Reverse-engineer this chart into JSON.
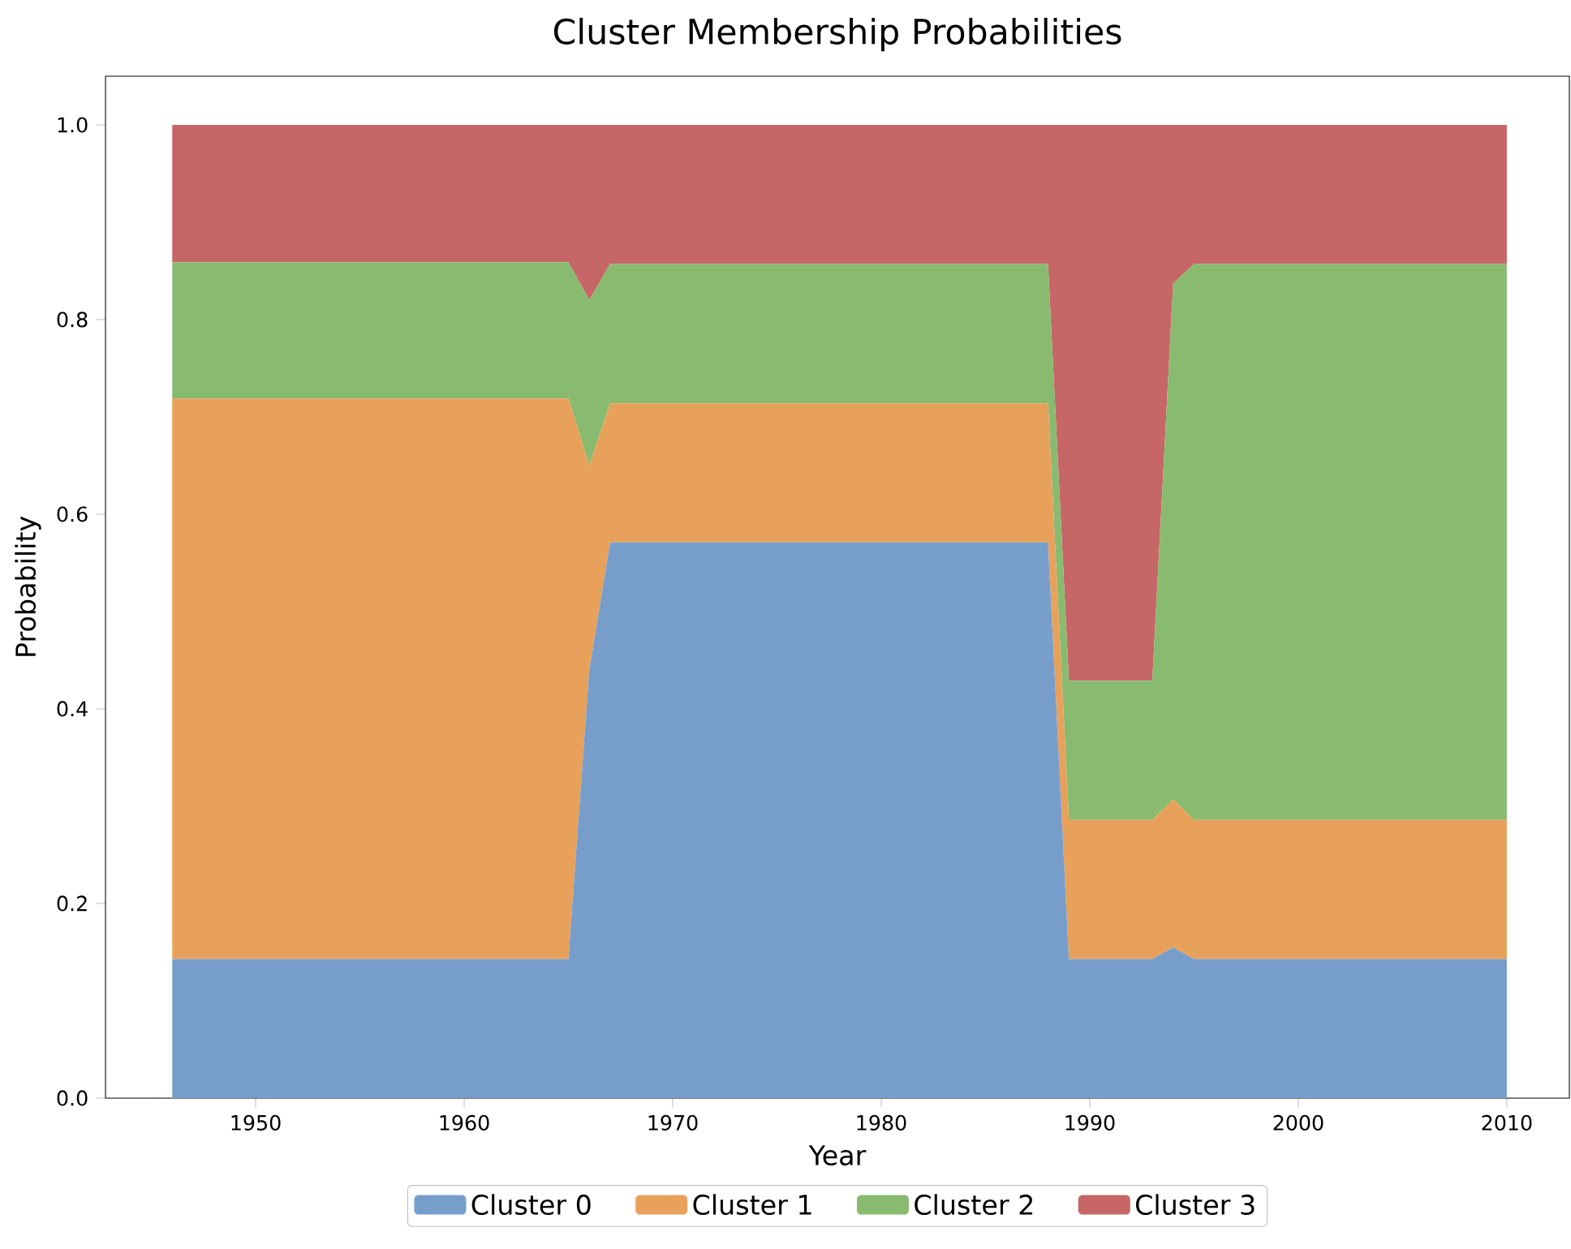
{
  "chart_data": {
    "type": "area",
    "stacked": true,
    "title": "Cluster Membership Probabilities",
    "xlabel": "Year",
    "ylabel": "Probability",
    "x": [
      1946,
      1947,
      1948,
      1949,
      1950,
      1951,
      1952,
      1953,
      1954,
      1955,
      1956,
      1957,
      1958,
      1959,
      1960,
      1961,
      1962,
      1963,
      1964,
      1965,
      1966,
      1967,
      1968,
      1969,
      1970,
      1971,
      1972,
      1973,
      1974,
      1975,
      1976,
      1977,
      1978,
      1979,
      1980,
      1981,
      1982,
      1983,
      1984,
      1985,
      1986,
      1987,
      1988,
      1989,
      1990,
      1991,
      1992,
      1993,
      1994,
      1995,
      1996,
      1997,
      1998,
      1999,
      2000,
      2001,
      2002,
      2003,
      2004,
      2005,
      2006,
      2007,
      2008,
      2009,
      2010
    ],
    "series": [
      {
        "name": "Cluster 0",
        "color": "#779ecb",
        "values": [
          0.143,
          0.143,
          0.143,
          0.143,
          0.143,
          0.143,
          0.143,
          0.143,
          0.143,
          0.143,
          0.143,
          0.143,
          0.143,
          0.143,
          0.143,
          0.143,
          0.143,
          0.143,
          0.143,
          0.143,
          0.44,
          0.571,
          0.571,
          0.571,
          0.571,
          0.571,
          0.571,
          0.571,
          0.571,
          0.571,
          0.571,
          0.571,
          0.571,
          0.571,
          0.571,
          0.571,
          0.571,
          0.571,
          0.571,
          0.571,
          0.571,
          0.571,
          0.571,
          0.143,
          0.143,
          0.143,
          0.143,
          0.143,
          0.155,
          0.143,
          0.143,
          0.143,
          0.143,
          0.143,
          0.143,
          0.143,
          0.143,
          0.143,
          0.143,
          0.143,
          0.143,
          0.143,
          0.143,
          0.143,
          0.143
        ]
      },
      {
        "name": "Cluster 1",
        "color": "#e8a15a",
        "values": [
          0.576,
          0.576,
          0.576,
          0.576,
          0.576,
          0.576,
          0.576,
          0.576,
          0.576,
          0.576,
          0.576,
          0.576,
          0.576,
          0.576,
          0.576,
          0.576,
          0.576,
          0.576,
          0.576,
          0.576,
          0.21,
          0.143,
          0.143,
          0.143,
          0.143,
          0.143,
          0.143,
          0.143,
          0.143,
          0.143,
          0.143,
          0.143,
          0.143,
          0.143,
          0.143,
          0.143,
          0.143,
          0.143,
          0.143,
          0.143,
          0.143,
          0.143,
          0.143,
          0.143,
          0.143,
          0.143,
          0.143,
          0.143,
          0.152,
          0.143,
          0.143,
          0.143,
          0.143,
          0.143,
          0.143,
          0.143,
          0.143,
          0.143,
          0.143,
          0.143,
          0.143,
          0.143,
          0.143,
          0.143,
          0.143
        ]
      },
      {
        "name": "Cluster 2",
        "color": "#88bb6f",
        "values": [
          0.14,
          0.14,
          0.14,
          0.14,
          0.14,
          0.14,
          0.14,
          0.14,
          0.14,
          0.14,
          0.14,
          0.14,
          0.14,
          0.14,
          0.14,
          0.14,
          0.14,
          0.14,
          0.14,
          0.14,
          0.17,
          0.143,
          0.143,
          0.143,
          0.143,
          0.143,
          0.143,
          0.143,
          0.143,
          0.143,
          0.143,
          0.143,
          0.143,
          0.143,
          0.143,
          0.143,
          0.143,
          0.143,
          0.143,
          0.143,
          0.143,
          0.143,
          0.143,
          0.143,
          0.143,
          0.143,
          0.143,
          0.143,
          0.53,
          0.571,
          0.571,
          0.571,
          0.571,
          0.571,
          0.571,
          0.571,
          0.571,
          0.571,
          0.571,
          0.571,
          0.571,
          0.571,
          0.571,
          0.571,
          0.571
        ]
      },
      {
        "name": "Cluster 3",
        "color": "#c66666",
        "values": [
          0.141,
          0.141,
          0.141,
          0.141,
          0.141,
          0.141,
          0.141,
          0.141,
          0.141,
          0.141,
          0.141,
          0.141,
          0.141,
          0.141,
          0.141,
          0.141,
          0.141,
          0.141,
          0.141,
          0.141,
          0.18,
          0.143,
          0.143,
          0.143,
          0.143,
          0.143,
          0.143,
          0.143,
          0.143,
          0.143,
          0.143,
          0.143,
          0.143,
          0.143,
          0.143,
          0.143,
          0.143,
          0.143,
          0.143,
          0.143,
          0.143,
          0.143,
          0.143,
          0.571,
          0.571,
          0.571,
          0.571,
          0.571,
          0.163,
          0.143,
          0.143,
          0.143,
          0.143,
          0.143,
          0.143,
          0.143,
          0.143,
          0.143,
          0.143,
          0.143,
          0.143,
          0.143,
          0.143,
          0.143,
          0.143
        ]
      }
    ],
    "xlim": [
      1942.8,
      2013
    ],
    "ylim": [
      0,
      1.05
    ],
    "xticks": [
      1950,
      1960,
      1970,
      1980,
      1990,
      2000,
      2010
    ],
    "yticks": [
      {
        "value": 0,
        "label": "0.0"
      },
      {
        "value": 0.2,
        "label": "0.2"
      },
      {
        "value": 0.4,
        "label": "0.4"
      },
      {
        "value": 0.6,
        "label": "0.6"
      },
      {
        "value": 0.8,
        "label": "0.8"
      },
      {
        "value": 1.0,
        "label": "1.0"
      }
    ],
    "legend": "bottom"
  }
}
